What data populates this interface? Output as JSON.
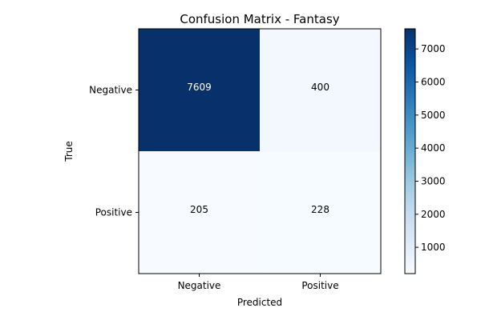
{
  "chart_data": {
    "type": "heatmap",
    "title": "Confusion Matrix - Fantasy",
    "xlabel": "Predicted",
    "ylabel": "True",
    "x_categories": [
      "Negative",
      "Positive"
    ],
    "y_categories": [
      "Negative",
      "Positive"
    ],
    "values": [
      [
        7609,
        400
      ],
      [
        205,
        228
      ]
    ],
    "colormap": "Blues",
    "colorbar": {
      "range": [
        205,
        7609
      ],
      "ticks": [
        1000,
        2000,
        3000,
        4000,
        5000,
        6000,
        7000
      ]
    },
    "colors": {
      "low": "#f7fbff",
      "high": "#08306b",
      "text_dark": "#000000",
      "text_light": "#ffffff"
    },
    "grid": false
  }
}
